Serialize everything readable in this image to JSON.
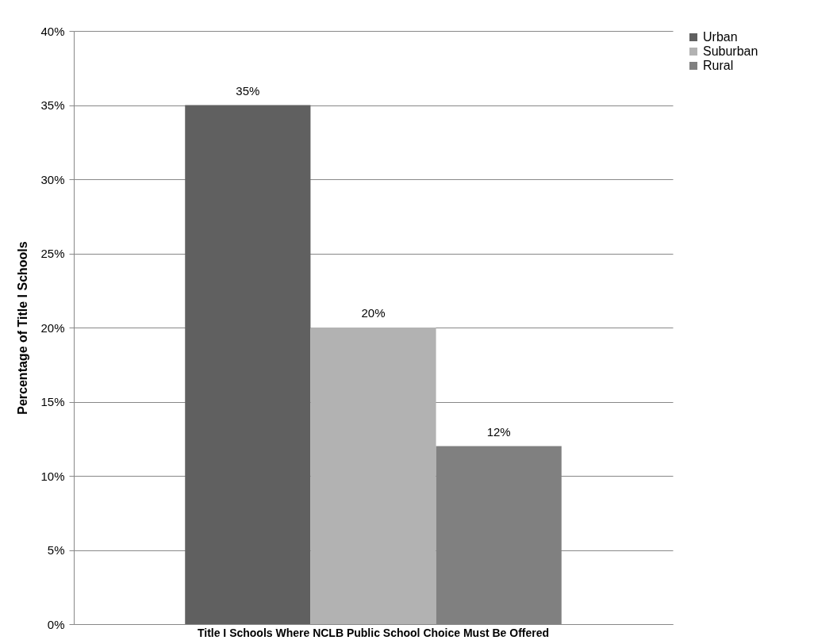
{
  "chart_data": {
    "type": "bar",
    "ylabel": "Percentage of Title I Schools",
    "categories": [
      "Title I Schools Where NCLB Public School Choice Must Be Offered"
    ],
    "series": [
      {
        "name": "Urban",
        "color": "#606060",
        "values": [
          35
        ],
        "value_labels": [
          "35%"
        ]
      },
      {
        "name": "Suburban",
        "color": "#b2b2b2",
        "values": [
          20
        ],
        "value_labels": [
          "20%"
        ]
      },
      {
        "name": "Rural",
        "color": "#808080",
        "values": [
          12
        ],
        "value_labels": [
          "12%"
        ]
      }
    ],
    "ylim": [
      0,
      40
    ],
    "yticks": [
      {
        "value": 0,
        "label": "0%"
      },
      {
        "value": 5,
        "label": "5%"
      },
      {
        "value": 10,
        "label": "10%"
      },
      {
        "value": 15,
        "label": "15%"
      },
      {
        "value": 20,
        "label": "20%"
      },
      {
        "value": 25,
        "label": "25%"
      },
      {
        "value": 30,
        "label": "30%"
      },
      {
        "value": 35,
        "label": "35%"
      },
      {
        "value": 40,
        "label": "40%"
      }
    ],
    "grid": "y",
    "legend": "right"
  }
}
